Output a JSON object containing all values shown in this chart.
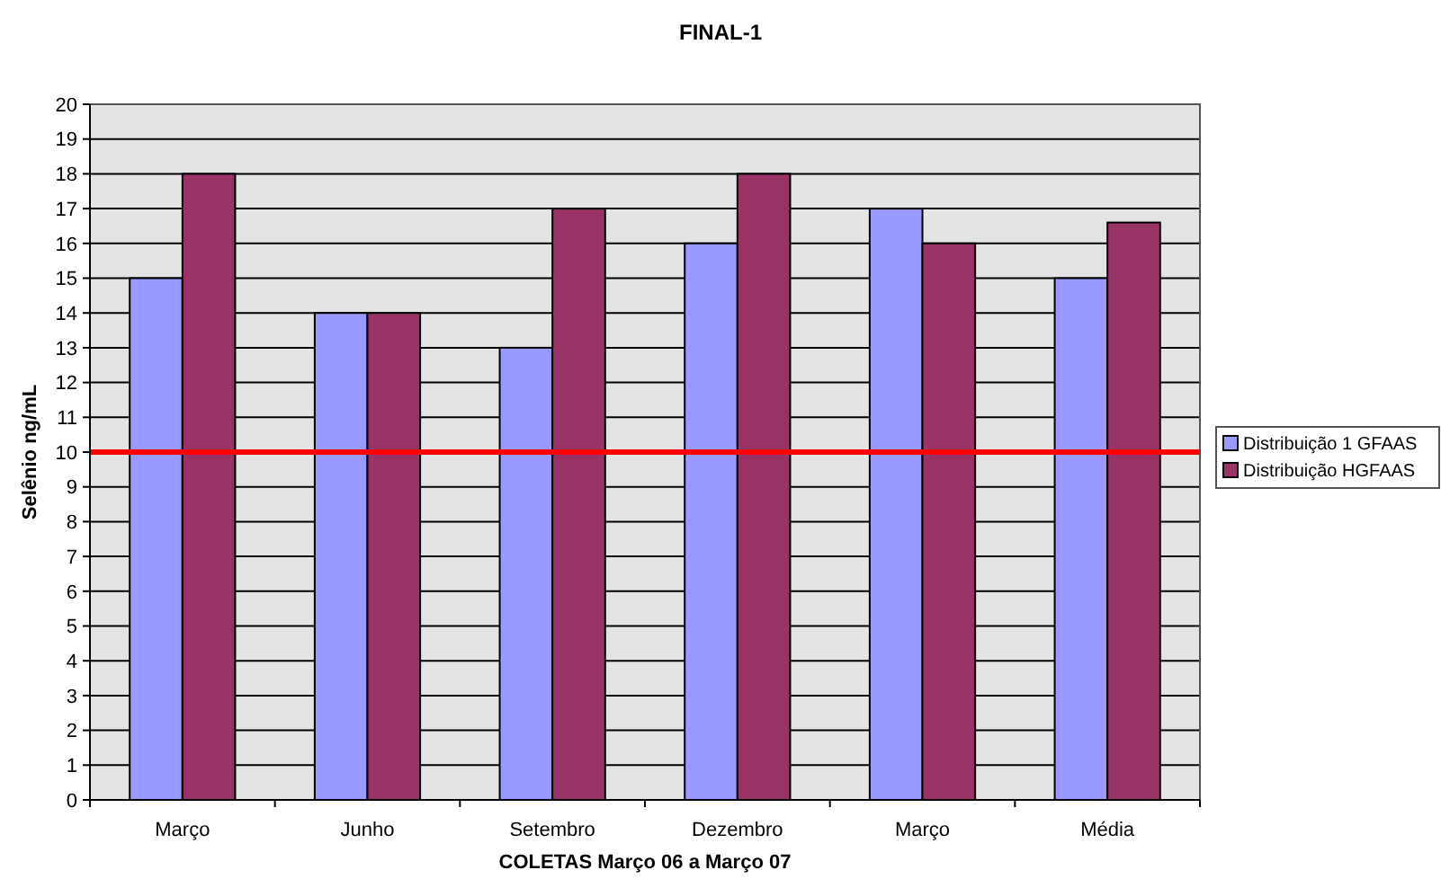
{
  "chart_data": {
    "type": "bar",
    "title": "FINAL-1",
    "xlabel": "COLETAS Março 06 a Março 07",
    "ylabel": "Selênio ng/mL",
    "categories": [
      "Março",
      "Junho",
      "Setembro",
      "Dezembro",
      "Março",
      "Média"
    ],
    "series": [
      {
        "name": "Distribuição 1 GFAAS",
        "color": "#9999ff",
        "values": [
          15,
          14,
          13,
          16,
          17,
          15
        ]
      },
      {
        "name": "Distribuição HGFAAS",
        "color": "#993366",
        "values": [
          18,
          14,
          17,
          18,
          16,
          16.6
        ]
      }
    ],
    "ylim": [
      0,
      20
    ],
    "yticks": [
      0,
      1,
      2,
      3,
      4,
      5,
      6,
      7,
      8,
      9,
      10,
      11,
      12,
      13,
      14,
      15,
      16,
      17,
      18,
      19,
      20
    ],
    "grid": "y",
    "legend": "right",
    "ref_lines": [
      {
        "axis": "y",
        "value": 10,
        "color": "#ff0000"
      }
    ]
  }
}
